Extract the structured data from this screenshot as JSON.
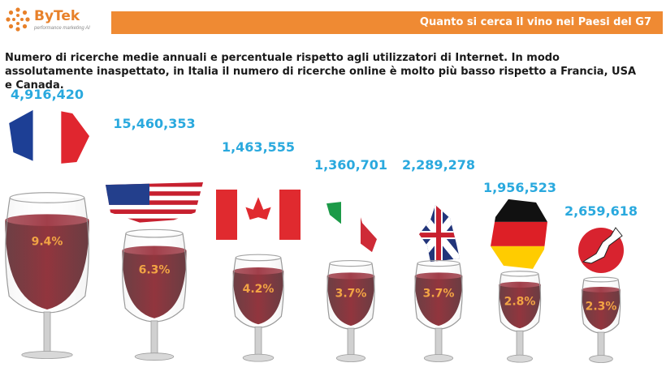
{
  "brand": {
    "name": "ByTek",
    "tagline": "performance marketing AI"
  },
  "header": {
    "title": "Quanto si cerca il vino nei Paesi del G7"
  },
  "intro_text": "Numero di ricerche medie annuali e percentuale rispetto agli utilizzatori di Internet. In modo assolutamente inaspettato, in Italia il numero di ricerche online è molto più basso rispetto a Francia, USA e Canada.",
  "colors": {
    "accent_orange": "#ef8a33",
    "count_blue": "#2aa9de",
    "percent_orange": "#f2a444",
    "wine_red": "#7a1d27"
  },
  "chart_data": {
    "type": "bar",
    "categories": [
      "France",
      "USA",
      "Canada",
      "Italy",
      "UK",
      "Germany",
      "Japan"
    ],
    "series": [
      {
        "values": [
          4916420,
          15460353,
          1463555,
          1360701,
          2289278,
          1956523,
          2659618
        ],
        "labels": [
          "4,916,420",
          "15,460,353",
          "1,463,555",
          "1,360,701",
          "2,289,278",
          "1,956,523",
          "2,659,618"
        ]
      },
      {
        "values": [
          9.4,
          6.3,
          4.2,
          3.7,
          3.7,
          2.8,
          2.3
        ],
        "labels": [
          "9.4%",
          "6.3%",
          "4.2%",
          "3.7%",
          "3.7%",
          "2.8%",
          "2.3%"
        ]
      }
    ],
    "flag_icons": [
      "france-flag-icon",
      "usa-flag-icon",
      "canada-flag-icon",
      "italy-flag-icon",
      "uk-flag-icon",
      "germany-flag-icon",
      "japan-flag-icon"
    ]
  }
}
